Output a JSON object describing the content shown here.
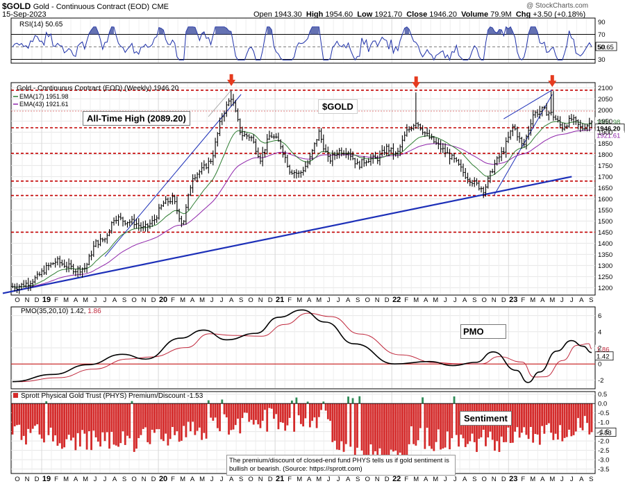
{
  "header": {
    "symbol": "$GOLD",
    "name": "Gold - Continuous Contract (EOD)",
    "exchange": "CME",
    "date": "15-Sep-2023",
    "open_label": "Open",
    "open": "1943.30",
    "high_label": "High",
    "high": "1954.60",
    "low_label": "Low",
    "low": "1921.70",
    "close_label": "Close",
    "close": "1946.20",
    "volume_label": "Volume",
    "volume": "79.9M",
    "chg_label": "Chg",
    "chg": "+3.50 (+0.18%)",
    "watermark": "@ StockCharts.com"
  },
  "rsi_panel": {
    "label": "RSI(14) 50.65",
    "current_tag": "50.65",
    "ticks": [
      90,
      70,
      50,
      30
    ]
  },
  "price_panel": {
    "legend_title": "Gold - Continuous Contract (EOD) (Weekly) 1946.20",
    "ema17_label": "EMA(17) 1951.98",
    "ema43_label": "EMA(43) 1921.61",
    "symbol_box": "$GOLD",
    "ath_annotation": "All-Time High (2089.20)",
    "price_tag": "1946.20",
    "ema17_tag": "1951.98",
    "ema43_tag": "1921.61",
    "ticks": [
      2100,
      2050,
      2000,
      1950,
      1900,
      1850,
      1800,
      1750,
      1700,
      1650,
      1600,
      1550,
      1500,
      1450,
      1400,
      1350,
      1300,
      1250,
      1200
    ],
    "horizontal_levels": [
      2089,
      1920,
      1805,
      1680,
      1615,
      1450
    ],
    "dashed_level_2000": 1995
  },
  "pmo_panel": {
    "label_prefix": "PMO(35,20,10)",
    "pmo_value": "1.42",
    "signal_value": "1.86",
    "annotation": "PMO",
    "pmo_tag": "1.42",
    "signal_tag": "1.86",
    "ticks": [
      6,
      4,
      2,
      0,
      -2
    ]
  },
  "sentiment_panel": {
    "label": "Sprott Physical Gold Trust (PHYS) Premium/Discount -1.53",
    "annotation": "Sentiment",
    "note": "The premium/discount of closed-end fund PHYS tells us if gold sentiment is bullish or bearish. (Source: https://sprott.com)",
    "value_tag": "-1.53",
    "ticks": [
      "0.5",
      "0.0",
      "-0.5",
      "-1.0",
      "-1.5",
      "-2.0",
      "-2.5",
      "-3.0",
      "-3.5"
    ]
  },
  "x_axis": {
    "labels": [
      "O",
      "N",
      "D",
      "19",
      "F",
      "M",
      "A",
      "M",
      "J",
      "J",
      "A",
      "S",
      "O",
      "N",
      "D",
      "20",
      "F",
      "M",
      "A",
      "M",
      "J",
      "J",
      "A",
      "S",
      "O",
      "N",
      "D",
      "21",
      "F",
      "M",
      "A",
      "M",
      "J",
      "J",
      "A",
      "S",
      "O",
      "N",
      "D",
      "22",
      "F",
      "M",
      "A",
      "M",
      "J",
      "J",
      "A",
      "S",
      "O",
      "N",
      "D",
      "23",
      "F",
      "M",
      "A",
      "M",
      "J",
      "J",
      "A",
      "S"
    ]
  },
  "colors": {
    "price_bar": "#000000",
    "ema17": "#2e7d32",
    "ema43": "#8e24aa",
    "trendline": "#1c2fb8",
    "resistance": "#c40000",
    "arrow": "#e53a1e",
    "pmo": "#000000",
    "pmo_signal": "#c0283c",
    "sentiment_bar": "#d42a2a",
    "sentiment_positive": "#2e8b57",
    "rsi_line": "#1c2fa8",
    "rsi_fill": "#3f4fa0"
  },
  "chart_data": {
    "type": "line",
    "title": "Gold - Continuous Contract (EOD) (Weekly)",
    "ylim": [
      1170,
      2120
    ],
    "x_range": [
      "2018-10",
      "2023-09"
    ],
    "series": [
      {
        "name": "Gold - Continuous Contract (EOD)",
        "values": [
          [
            "2018-10",
            1205
          ],
          [
            "2018-11",
            1220
          ],
          [
            "2018-12",
            1245
          ],
          [
            "2019-01",
            1290
          ],
          [
            "2019-02",
            1320
          ],
          [
            "2019-03",
            1300
          ],
          [
            "2019-04",
            1280
          ],
          [
            "2019-05",
            1290
          ],
          [
            "2019-06",
            1400
          ],
          [
            "2019-07",
            1420
          ],
          [
            "2019-08",
            1520
          ],
          [
            "2019-09",
            1500
          ],
          [
            "2019-10",
            1495
          ],
          [
            "2019-11",
            1465
          ],
          [
            "2019-12",
            1500
          ],
          [
            "2020-01",
            1580
          ],
          [
            "2020-02",
            1600
          ],
          [
            "2020-03",
            1480
          ],
          [
            "2020-04",
            1700
          ],
          [
            "2020-05",
            1730
          ],
          [
            "2020-06",
            1780
          ],
          [
            "2020-07",
            1970
          ],
          [
            "2020-08",
            2060
          ],
          [
            "2020-09",
            1890
          ],
          [
            "2020-10",
            1880
          ],
          [
            "2020-11",
            1780
          ],
          [
            "2020-12",
            1890
          ],
          [
            "2021-01",
            1850
          ],
          [
            "2021-02",
            1730
          ],
          [
            "2021-03",
            1710
          ],
          [
            "2021-04",
            1770
          ],
          [
            "2021-05",
            1900
          ],
          [
            "2021-06",
            1770
          ],
          [
            "2021-07",
            1815
          ],
          [
            "2021-08",
            1815
          ],
          [
            "2021-09",
            1750
          ],
          [
            "2021-10",
            1780
          ],
          [
            "2021-11",
            1780
          ],
          [
            "2021-12",
            1830
          ],
          [
            "2022-01",
            1795
          ],
          [
            "2022-02",
            1900
          ],
          [
            "2022-03",
            1950
          ],
          [
            "2022-04",
            1890
          ],
          [
            "2022-05",
            1850
          ],
          [
            "2022-06",
            1810
          ],
          [
            "2022-07",
            1770
          ],
          [
            "2022-08",
            1710
          ],
          [
            "2022-09",
            1670
          ],
          [
            "2022-10",
            1640
          ],
          [
            "2022-11",
            1750
          ],
          [
            "2022-12",
            1820
          ],
          [
            "2023-01",
            1930
          ],
          [
            "2023-02",
            1830
          ],
          [
            "2023-03",
            1980
          ],
          [
            "2023-04",
            2000
          ],
          [
            "2023-05",
            1980
          ],
          [
            "2023-06",
            1920
          ],
          [
            "2023-07",
            1960
          ],
          [
            "2023-08",
            1915
          ],
          [
            "2023-09",
            1946.2
          ]
        ]
      },
      {
        "name": "EMA(17)",
        "last": 1951.98
      },
      {
        "name": "EMA(43)",
        "last": 1921.61
      }
    ],
    "peaks": [
      {
        "date": "2020-08",
        "value": 2089.2
      },
      {
        "date": "2022-03",
        "value": 2079
      },
      {
        "date": "2023-05",
        "value": 2085
      }
    ],
    "pmo": {
      "ylim": [
        -3,
        7
      ],
      "pmo_last": 1.42,
      "signal_last": 1.86
    },
    "rsi": {
      "ylim": [
        25,
        95
      ],
      "last": 50.65
    },
    "sentiment": {
      "ylim": [
        -3.7,
        0.6
      ],
      "last": -1.53
    }
  }
}
